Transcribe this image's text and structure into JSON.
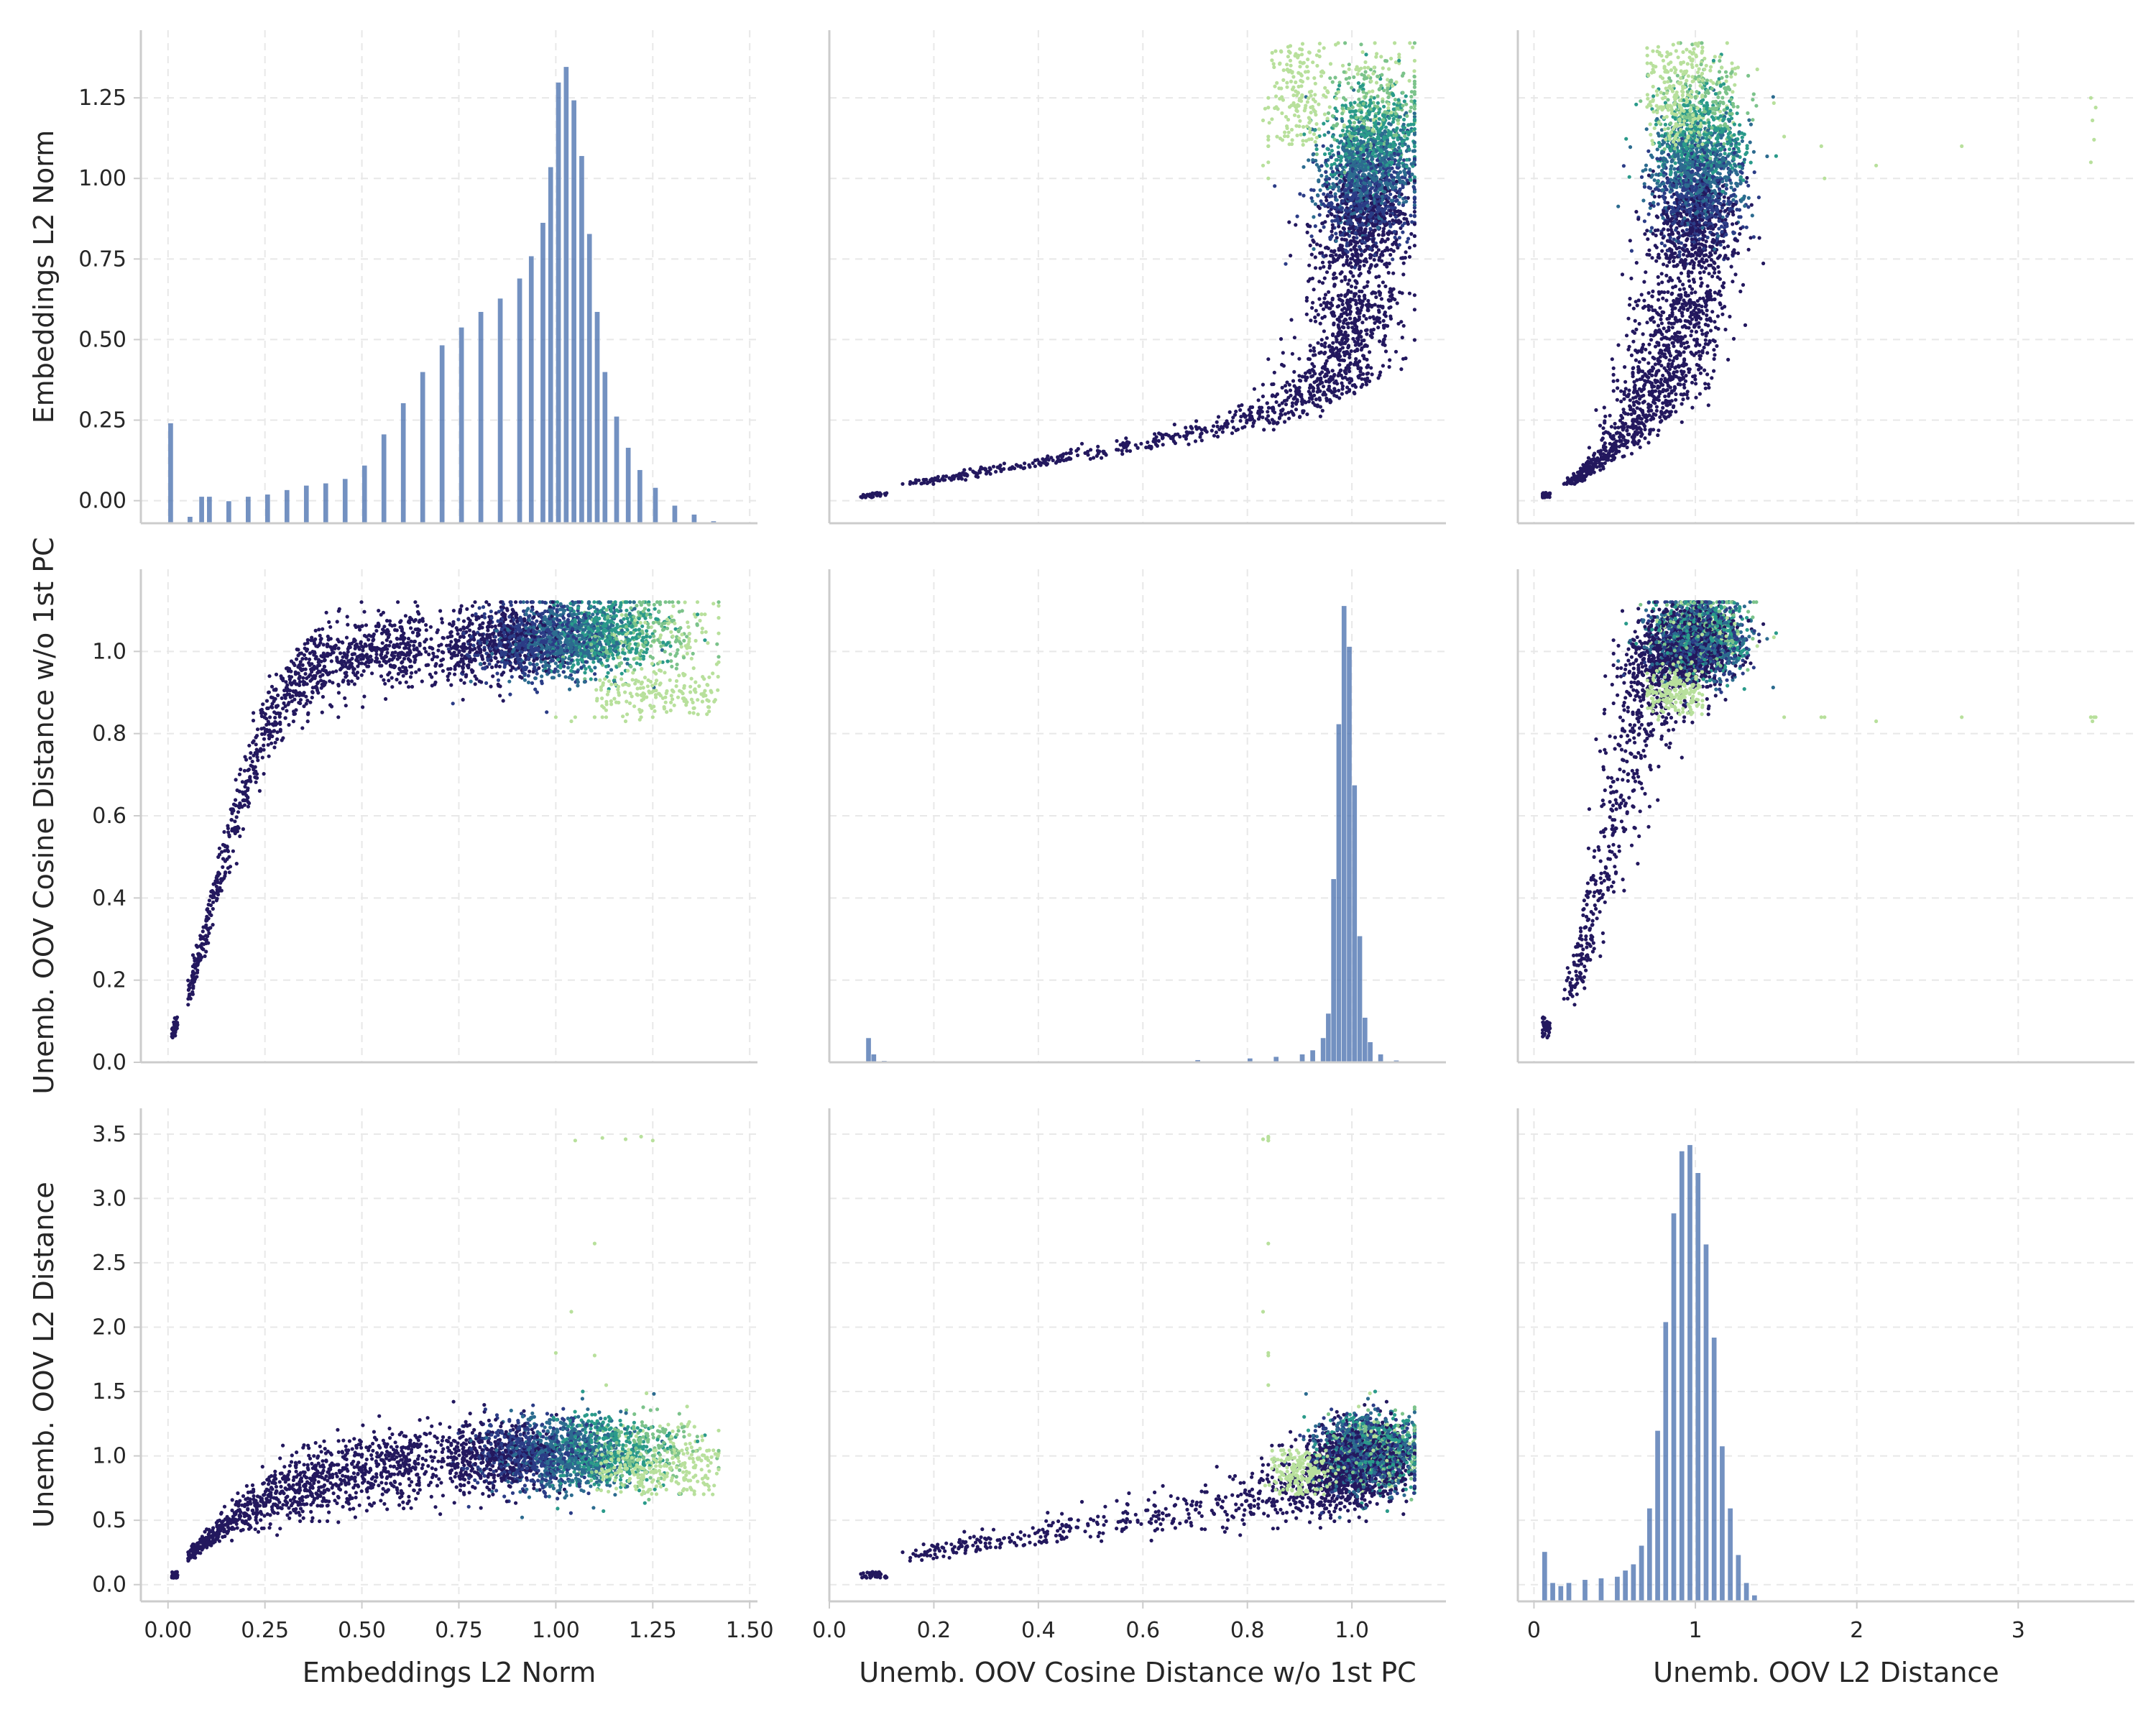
{
  "chart_data": {
    "type": "scatter",
    "layout": "pair-grid 3x3",
    "grid": true,
    "variables": [
      {
        "key": "emb_l2",
        "label": "Embeddings L2 Norm",
        "ticks": [
          0.0,
          0.25,
          0.5,
          0.75,
          1.0,
          1.25,
          1.5
        ],
        "tick_labels": [
          "0.00",
          "0.25",
          "0.50",
          "0.75",
          "1.00",
          "1.25",
          "1.50"
        ],
        "lim_x": [
          -0.07,
          1.52
        ],
        "lim_y": [
          -0.07,
          1.46
        ]
      },
      {
        "key": "cos_dist",
        "label": "Unemb. OOV Cosine Distance w/o 1st PC",
        "ticks": [
          0.0,
          0.2,
          0.4,
          0.6,
          0.8,
          1.0
        ],
        "tick_labels": [
          "0.0",
          "0.2",
          "0.4",
          "0.6",
          "0.8",
          "1.0"
        ],
        "lim_x": [
          0.0,
          1.18
        ],
        "lim_y": [
          0.0,
          1.2
        ]
      },
      {
        "key": "oov_l2",
        "label": "Unemb. OOV L2 Distance",
        "ticks": [
          0,
          1,
          2,
          3
        ],
        "tick_labels": [
          "0",
          "1",
          "2",
          "3"
        ],
        "y_ticks": [
          0.0,
          0.5,
          1.0,
          1.5,
          2.0,
          2.5,
          3.0,
          3.5
        ],
        "y_tick_labels": [
          "0.0",
          "0.5",
          "1.0",
          "1.5",
          "2.0",
          "2.5",
          "3.0",
          "3.5"
        ],
        "lim_x": [
          -0.1,
          3.72
        ],
        "lim_y": [
          -0.13,
          3.7
        ]
      }
    ],
    "palette": [
      "#23185e",
      "#2b3c86",
      "#2c6b8f",
      "#2a9a8a",
      "#7cc38b",
      "#b8e09c"
    ],
    "histogram_color": "#4c72b0",
    "histograms": [
      {
        "variable": "emb_l2",
        "bins": [
          [
            0.0,
            0.045
          ],
          [
            0.05,
            0.003
          ],
          [
            0.08,
            0.012
          ],
          [
            0.1,
            0.012
          ],
          [
            0.15,
            0.01
          ],
          [
            0.2,
            0.012
          ],
          [
            0.25,
            0.013
          ],
          [
            0.3,
            0.015
          ],
          [
            0.35,
            0.017
          ],
          [
            0.4,
            0.018
          ],
          [
            0.45,
            0.02
          ],
          [
            0.5,
            0.026
          ],
          [
            0.55,
            0.04
          ],
          [
            0.6,
            0.054
          ],
          [
            0.65,
            0.068
          ],
          [
            0.7,
            0.08
          ],
          [
            0.75,
            0.088
          ],
          [
            0.8,
            0.095
          ],
          [
            0.85,
            0.101
          ],
          [
            0.9,
            0.11
          ],
          [
            0.93,
            0.12
          ],
          [
            0.96,
            0.135
          ],
          [
            0.98,
            0.16
          ],
          [
            1.0,
            0.198
          ],
          [
            1.02,
            0.205
          ],
          [
            1.04,
            0.19
          ],
          [
            1.06,
            0.165
          ],
          [
            1.08,
            0.13
          ],
          [
            1.1,
            0.095
          ],
          [
            1.12,
            0.068
          ],
          [
            1.15,
            0.048
          ],
          [
            1.18,
            0.034
          ],
          [
            1.21,
            0.024
          ],
          [
            1.25,
            0.016
          ],
          [
            1.3,
            0.008
          ],
          [
            1.35,
            0.004
          ],
          [
            1.4,
            0.001
          ]
        ]
      },
      {
        "variable": "cos_dist",
        "bins": [
          [
            0.07,
            0.06
          ],
          [
            0.08,
            0.02
          ],
          [
            0.1,
            0.004
          ],
          [
            0.35,
            0.003
          ],
          [
            0.5,
            0.002
          ],
          [
            0.6,
            0.003
          ],
          [
            0.7,
            0.006
          ],
          [
            0.8,
            0.01
          ],
          [
            0.85,
            0.014
          ],
          [
            0.9,
            0.02
          ],
          [
            0.92,
            0.03
          ],
          [
            0.94,
            0.06
          ],
          [
            0.95,
            0.12
          ],
          [
            0.96,
            0.45
          ],
          [
            0.97,
            0.83
          ],
          [
            0.98,
            1.12
          ],
          [
            0.99,
            1.02
          ],
          [
            1.0,
            0.68
          ],
          [
            1.01,
            0.31
          ],
          [
            1.02,
            0.11
          ],
          [
            1.03,
            0.05
          ],
          [
            1.05,
            0.02
          ],
          [
            1.08,
            0.005
          ]
        ]
      },
      {
        "variable": "oov_l2",
        "bins": [
          [
            0.05,
            0.16
          ],
          [
            0.1,
            0.06
          ],
          [
            0.15,
            0.05
          ],
          [
            0.2,
            0.06
          ],
          [
            0.3,
            0.07
          ],
          [
            0.4,
            0.075
          ],
          [
            0.5,
            0.08
          ],
          [
            0.55,
            0.1
          ],
          [
            0.6,
            0.12
          ],
          [
            0.65,
            0.18
          ],
          [
            0.7,
            0.3
          ],
          [
            0.75,
            0.55
          ],
          [
            0.8,
            0.9
          ],
          [
            0.85,
            1.25
          ],
          [
            0.9,
            1.45
          ],
          [
            0.95,
            1.47
          ],
          [
            1.0,
            1.38
          ],
          [
            1.05,
            1.15
          ],
          [
            1.1,
            0.85
          ],
          [
            1.15,
            0.5
          ],
          [
            1.2,
            0.3
          ],
          [
            1.25,
            0.15
          ],
          [
            1.3,
            0.06
          ],
          [
            1.35,
            0.02
          ]
        ]
      }
    ]
  }
}
